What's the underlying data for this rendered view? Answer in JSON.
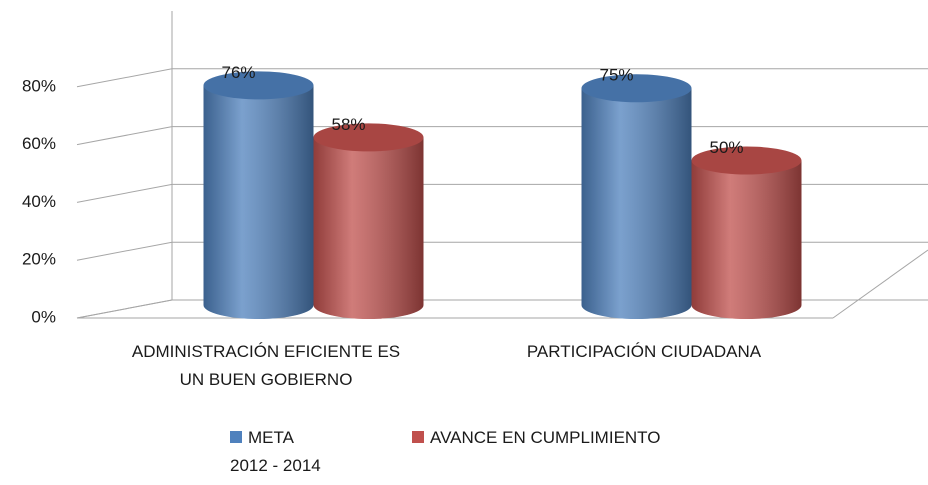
{
  "chart_data": {
    "type": "cylinder",
    "categories": [
      "ADMINISTRACIÓN EFICIENTE ES\nUN BUEN GOBIERNO",
      "PARTICIPACIÓN CIUDADANA"
    ],
    "series": [
      {
        "name": "META\n2012 - 2014",
        "color": "#4f81bd",
        "values": [
          76,
          75
        ],
        "value_labels": [
          "76%",
          "75%"
        ]
      },
      {
        "name": "AVANCE EN CUMPLIMIENTO",
        "color": "#c0504d",
        "values": [
          58,
          50
        ],
        "value_labels": [
          "58%",
          "50%"
        ]
      }
    ],
    "ylim": [
      0,
      100
    ],
    "yticks": [
      {
        "value": 0,
        "label": "0%"
      },
      {
        "value": 20,
        "label": "20%"
      },
      {
        "value": 40,
        "label": "40%"
      },
      {
        "value": 60,
        "label": "60%"
      },
      {
        "value": 80,
        "label": "80%"
      }
    ],
    "grid": true,
    "legend": "bottom"
  }
}
